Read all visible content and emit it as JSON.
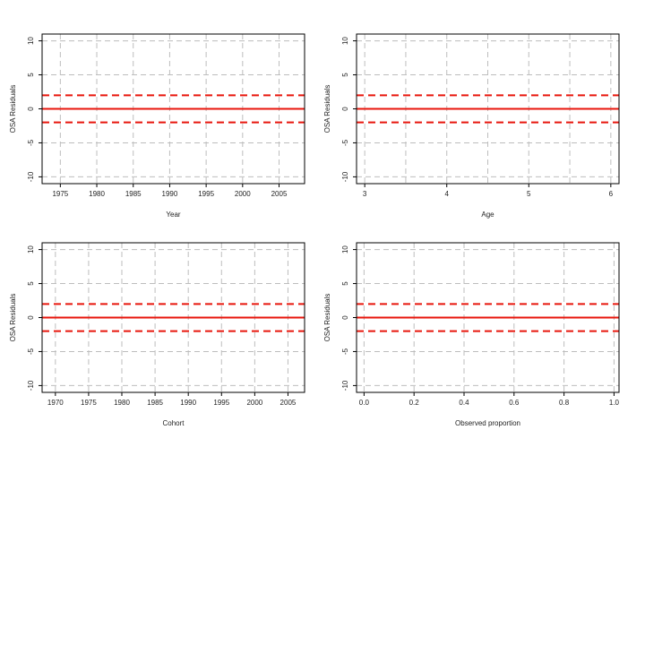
{
  "colors": {
    "grid": "#bdbdbd",
    "frame": "#000000",
    "reference_line": "#e8160c",
    "text": "#222222"
  },
  "chart_data": [
    {
      "type": "scatter",
      "title": "",
      "xlabel": "Year",
      "ylabel": "OSA Residuals",
      "xlim": [
        1972.5,
        2008.5
      ],
      "ylim": [
        -11,
        11
      ],
      "xticks": [
        1975,
        1980,
        1985,
        1990,
        1995,
        2000,
        2005
      ],
      "xtick_labels": [
        "1975",
        "1980",
        "1985",
        "1990",
        "1995",
        "2000",
        "2005"
      ],
      "yticks": [
        -10,
        -5,
        0,
        5,
        10
      ],
      "ytick_labels": [
        "-10",
        "-5",
        "0",
        "5",
        "10"
      ],
      "xgrid": [
        1975,
        1980,
        1985,
        1990,
        1995,
        2000,
        2005
      ],
      "ygrid": [
        -10,
        -5,
        0,
        5,
        10
      ],
      "grid": true,
      "reference_lines": [
        {
          "y": 0,
          "style": "solid"
        },
        {
          "y": 2,
          "style": "dashed"
        },
        {
          "y": -2,
          "style": "dashed"
        }
      ],
      "points": []
    },
    {
      "type": "scatter",
      "title": "",
      "xlabel": "Age",
      "ylabel": "OSA Residuals",
      "xlim": [
        2.9,
        6.1
      ],
      "ylim": [
        -11,
        11
      ],
      "xticks": [
        3,
        4,
        5,
        6
      ],
      "xtick_labels": [
        "3",
        "4",
        "5",
        "6"
      ],
      "yticks": [
        -10,
        -5,
        0,
        5,
        10
      ],
      "ytick_labels": [
        "-10",
        "-5",
        "0",
        "5",
        "10"
      ],
      "xgrid": [
        3,
        3.5,
        4,
        4.5,
        5,
        5.5,
        6
      ],
      "ygrid": [
        -10,
        -5,
        0,
        5,
        10
      ],
      "grid": true,
      "reference_lines": [
        {
          "y": 0,
          "style": "solid"
        },
        {
          "y": 2,
          "style": "dashed"
        },
        {
          "y": -2,
          "style": "dashed"
        }
      ],
      "points": []
    },
    {
      "type": "scatter",
      "title": "",
      "xlabel": "Cohort",
      "ylabel": "OSA Residuals",
      "xlim": [
        1968,
        2007.5
      ],
      "ylim": [
        -11,
        11
      ],
      "xticks": [
        1970,
        1975,
        1980,
        1985,
        1990,
        1995,
        2000,
        2005
      ],
      "xtick_labels": [
        "1970",
        "1975",
        "1980",
        "1985",
        "1990",
        "1995",
        "2000",
        "2005"
      ],
      "yticks": [
        -10,
        -5,
        0,
        5,
        10
      ],
      "ytick_labels": [
        "-10",
        "-5",
        "0",
        "5",
        "10"
      ],
      "xgrid": [
        1970,
        1975,
        1980,
        1985,
        1990,
        1995,
        2000,
        2005
      ],
      "ygrid": [
        -10,
        -5,
        0,
        5,
        10
      ],
      "grid": true,
      "reference_lines": [
        {
          "y": 0,
          "style": "solid"
        },
        {
          "y": 2,
          "style": "dashed"
        },
        {
          "y": -2,
          "style": "dashed"
        }
      ],
      "points": []
    },
    {
      "type": "scatter",
      "title": "",
      "xlabel": "Observed proportion",
      "ylabel": "OSA Residuals",
      "xlim": [
        -0.03,
        1.02
      ],
      "ylim": [
        -11,
        11
      ],
      "xticks": [
        0,
        0.2,
        0.4,
        0.6,
        0.8,
        1
      ],
      "xtick_labels": [
        "0.0",
        "0.2",
        "0.4",
        "0.6",
        "0.8",
        "1.0"
      ],
      "yticks": [
        -10,
        -5,
        0,
        5,
        10
      ],
      "ytick_labels": [
        "-10",
        "-5",
        "0",
        "5",
        "10"
      ],
      "xgrid": [
        0,
        0.2,
        0.4,
        0.6,
        0.8,
        1
      ],
      "ygrid": [
        -10,
        -5,
        0,
        5,
        10
      ],
      "grid": true,
      "reference_lines": [
        {
          "y": 0,
          "style": "solid"
        },
        {
          "y": 2,
          "style": "dashed"
        },
        {
          "y": -2,
          "style": "dashed"
        }
      ],
      "points": []
    }
  ]
}
